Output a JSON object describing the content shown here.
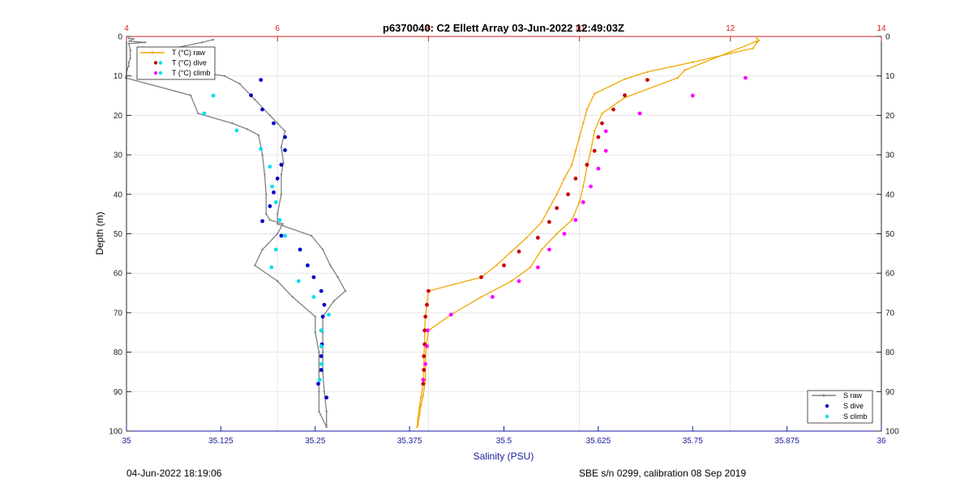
{
  "chart_data": {
    "type": "line",
    "title": "p6370040: C2 Ellett Array 03-Jun-2022 12:49:03Z",
    "xlabel": "Salinity (PSU)",
    "ylabel": "Depth (m)",
    "xlim": [
      35,
      36
    ],
    "x_ticks": [
      "35",
      "35.125",
      "35.25",
      "35.375",
      "35.5",
      "35.625",
      "35.75",
      "35.875",
      "36"
    ],
    "x_top_lim": [
      4,
      14
    ],
    "x_top_ticks": [
      "4",
      "6",
      "8",
      "10",
      "12",
      "14"
    ],
    "ylim": [
      0,
      100
    ],
    "y_ticks": [
      "0",
      "10",
      "20",
      "30",
      "40",
      "50",
      "60",
      "70",
      "80",
      "90",
      "100"
    ],
    "grid": true,
    "colors": {
      "s_raw": "#808080",
      "s_dive": "#0000c8",
      "s_climb": "#00e0f0",
      "t_raw": "#f0a800",
      "t_dive": "#c80000",
      "t_climb": "#ff00ff",
      "bottom_axis": "#1b1b9e",
      "top_axis": "#d42020"
    },
    "legend_temperature": {
      "placement": "top-left",
      "entries": [
        "T (°C) raw",
        "T (°C) dive",
        "T (°C) climb"
      ]
    },
    "legend_salinity": {
      "placement": "bottom-right",
      "entries": [
        "S raw",
        "S dive",
        "S climb"
      ]
    },
    "salinity_raw": [
      {
        "x": 35.003,
        "y": 0.5
      },
      {
        "x": 35.009,
        "y": 0.6
      },
      {
        "x": 35.004,
        "y": 1.2
      },
      {
        "x": 35.025,
        "y": 1.5
      },
      {
        "x": 35.003,
        "y": 1.8
      },
      {
        "x": 35.005,
        "y": 3.5
      },
      {
        "x": 35.005,
        "y": 5.5
      },
      {
        "x": 35.003,
        "y": 6.6
      },
      {
        "x": 35.003,
        "y": 7.5
      },
      {
        "x": 35.001,
        "y": 8.2
      },
      {
        "x": 34.999,
        "y": 10.5
      },
      {
        "x": 35.085,
        "y": 14.9
      },
      {
        "x": 35.095,
        "y": 19.5
      },
      {
        "x": 35.14,
        "y": 22.0
      },
      {
        "x": 35.16,
        "y": 23.5
      },
      {
        "x": 35.175,
        "y": 25.0
      },
      {
        "x": 35.18,
        "y": 30.0
      },
      {
        "x": 35.183,
        "y": 35.0
      },
      {
        "x": 35.185,
        "y": 40.0
      },
      {
        "x": 35.185,
        "y": 45.0
      },
      {
        "x": 35.19,
        "y": 46.5
      },
      {
        "x": 35.207,
        "y": 47.5
      },
      {
        "x": 35.2,
        "y": 50.0
      },
      {
        "x": 35.18,
        "y": 54.0
      },
      {
        "x": 35.17,
        "y": 58.0
      },
      {
        "x": 35.2,
        "y": 62.0
      },
      {
        "x": 35.22,
        "y": 66.0
      },
      {
        "x": 35.25,
        "y": 71.0
      },
      {
        "x": 35.25,
        "y": 75.0
      },
      {
        "x": 35.255,
        "y": 80.0
      },
      {
        "x": 35.255,
        "y": 85.0
      },
      {
        "x": 35.255,
        "y": 90.0
      },
      {
        "x": 35.255,
        "y": 95.0
      },
      {
        "x": 35.265,
        "y": 99.0
      }
    ],
    "salinity_raw_return": [
      {
        "x": 35.265,
        "y": 98.5
      },
      {
        "x": 35.265,
        "y": 95.0
      },
      {
        "x": 35.262,
        "y": 90.0
      },
      {
        "x": 35.26,
        "y": 85.0
      },
      {
        "x": 35.26,
        "y": 80.0
      },
      {
        "x": 35.26,
        "y": 75.0
      },
      {
        "x": 35.26,
        "y": 71.0
      },
      {
        "x": 35.275,
        "y": 67.0
      },
      {
        "x": 35.29,
        "y": 64.5
      },
      {
        "x": 35.28,
        "y": 61.0
      },
      {
        "x": 35.27,
        "y": 58.0
      },
      {
        "x": 35.26,
        "y": 54.0
      },
      {
        "x": 35.245,
        "y": 50.5
      },
      {
        "x": 35.2,
        "y": 47.5
      },
      {
        "x": 35.2,
        "y": 45.0
      },
      {
        "x": 35.205,
        "y": 40.0
      },
      {
        "x": 35.205,
        "y": 35.0
      },
      {
        "x": 35.208,
        "y": 32.0
      },
      {
        "x": 35.205,
        "y": 28.0
      },
      {
        "x": 35.21,
        "y": 24.0
      },
      {
        "x": 35.2,
        "y": 22.0
      },
      {
        "x": 35.19,
        "y": 20.0
      },
      {
        "x": 35.17,
        "y": 16.0
      },
      {
        "x": 35.15,
        "y": 12.0
      },
      {
        "x": 35.13,
        "y": 10.0
      },
      {
        "x": 35.09,
        "y": 8.8
      },
      {
        "x": 35.02,
        "y": 7.8
      },
      {
        "x": 35.03,
        "y": 6.6
      },
      {
        "x": 35.015,
        "y": 5.5
      },
      {
        "x": 35.05,
        "y": 3.5
      },
      {
        "x": 35.1,
        "y": 1.5
      },
      {
        "x": 35.115,
        "y": 0.8
      }
    ],
    "salinity_dive": [
      {
        "x": 35.178,
        "y": 11.0
      },
      {
        "x": 35.165,
        "y": 14.9
      },
      {
        "x": 35.18,
        "y": 18.5
      },
      {
        "x": 35.195,
        "y": 22.0
      },
      {
        "x": 35.21,
        "y": 25.5
      },
      {
        "x": 35.21,
        "y": 28.8
      },
      {
        "x": 35.205,
        "y": 32.5
      },
      {
        "x": 35.2,
        "y": 36.0
      },
      {
        "x": 35.195,
        "y": 39.5
      },
      {
        "x": 35.19,
        "y": 43.0
      },
      {
        "x": 35.18,
        "y": 46.8
      },
      {
        "x": 35.205,
        "y": 50.5
      },
      {
        "x": 35.23,
        "y": 54.0
      },
      {
        "x": 35.24,
        "y": 58.0
      },
      {
        "x": 35.248,
        "y": 61.0
      },
      {
        "x": 35.258,
        "y": 64.5
      },
      {
        "x": 35.262,
        "y": 68.0
      },
      {
        "x": 35.26,
        "y": 71.0
      },
      {
        "x": 35.258,
        "y": 74.5
      },
      {
        "x": 35.259,
        "y": 78.0
      },
      {
        "x": 35.258,
        "y": 81.0
      },
      {
        "x": 35.258,
        "y": 84.5
      },
      {
        "x": 35.254,
        "y": 88.0
      },
      {
        "x": 35.265,
        "y": 91.5
      }
    ],
    "salinity_climb": [
      {
        "x": 35.045,
        "y": 10.5
      },
      {
        "x": 35.115,
        "y": 15.0
      },
      {
        "x": 35.103,
        "y": 19.5
      },
      {
        "x": 35.146,
        "y": 23.8
      },
      {
        "x": 35.178,
        "y": 28.5
      },
      {
        "x": 35.19,
        "y": 33.0
      },
      {
        "x": 35.193,
        "y": 38.0
      },
      {
        "x": 35.198,
        "y": 42.0
      },
      {
        "x": 35.203,
        "y": 46.5
      },
      {
        "x": 35.21,
        "y": 50.5
      },
      {
        "x": 35.198,
        "y": 54.0
      },
      {
        "x": 35.192,
        "y": 58.5
      },
      {
        "x": 35.228,
        "y": 62.0
      },
      {
        "x": 35.248,
        "y": 66.0
      },
      {
        "x": 35.268,
        "y": 70.5
      },
      {
        "x": 35.258,
        "y": 74.5
      },
      {
        "x": 35.258,
        "y": 78.5
      },
      {
        "x": 35.258,
        "y": 83.0
      },
      {
        "x": 35.256,
        "y": 87.0
      }
    ],
    "temperature_raw": [
      {
        "x": 12.35,
        "y": 0.5
      },
      {
        "x": 12.38,
        "y": 1.0
      },
      {
        "x": 12.35,
        "y": 1.5
      },
      {
        "x": 12.3,
        "y": 3.0
      },
      {
        "x": 11.5,
        "y": 6.5
      },
      {
        "x": 10.9,
        "y": 9.0
      },
      {
        "x": 10.6,
        "y": 10.8
      },
      {
        "x": 10.2,
        "y": 14.5
      },
      {
        "x": 10.1,
        "y": 18.5
      },
      {
        "x": 10.05,
        "y": 22.0
      },
      {
        "x": 10.0,
        "y": 25.5
      },
      {
        "x": 9.95,
        "y": 29.0
      },
      {
        "x": 9.9,
        "y": 32.5
      },
      {
        "x": 9.8,
        "y": 36.0
      },
      {
        "x": 9.7,
        "y": 40.0
      },
      {
        "x": 9.6,
        "y": 43.5
      },
      {
        "x": 9.5,
        "y": 47.0
      },
      {
        "x": 9.3,
        "y": 51.0
      },
      {
        "x": 9.1,
        "y": 54.5
      },
      {
        "x": 8.9,
        "y": 58.0
      },
      {
        "x": 8.7,
        "y": 61.0
      },
      {
        "x": 8.0,
        "y": 64.5
      },
      {
        "x": 7.98,
        "y": 68.0
      },
      {
        "x": 7.96,
        "y": 71.0
      },
      {
        "x": 7.95,
        "y": 74.5
      },
      {
        "x": 7.95,
        "y": 78.0
      },
      {
        "x": 7.94,
        "y": 81.0
      },
      {
        "x": 7.94,
        "y": 84.5
      },
      {
        "x": 7.93,
        "y": 88.0
      },
      {
        "x": 7.9,
        "y": 91.5
      },
      {
        "x": 7.88,
        "y": 94.0
      },
      {
        "x": 7.86,
        "y": 97.0
      },
      {
        "x": 7.85,
        "y": 99.0
      }
    ],
    "temperature_raw_return": [
      {
        "x": 7.86,
        "y": 98.5
      },
      {
        "x": 7.88,
        "y": 96.0
      },
      {
        "x": 7.9,
        "y": 93.5
      },
      {
        "x": 7.93,
        "y": 91.0
      },
      {
        "x": 7.96,
        "y": 87.0
      },
      {
        "x": 7.96,
        "y": 83.0
      },
      {
        "x": 7.97,
        "y": 78.5
      },
      {
        "x": 8.0,
        "y": 74.5
      },
      {
        "x": 8.3,
        "y": 70.5
      },
      {
        "x": 8.7,
        "y": 66.0
      },
      {
        "x": 9.1,
        "y": 62.0
      },
      {
        "x": 9.35,
        "y": 58.5
      },
      {
        "x": 9.5,
        "y": 54.0
      },
      {
        "x": 9.7,
        "y": 50.0
      },
      {
        "x": 9.9,
        "y": 46.5
      },
      {
        "x": 10.0,
        "y": 42.0
      },
      {
        "x": 10.05,
        "y": 38.0
      },
      {
        "x": 10.1,
        "y": 33.0
      },
      {
        "x": 10.15,
        "y": 29.0
      },
      {
        "x": 10.2,
        "y": 24.0
      },
      {
        "x": 10.3,
        "y": 19.5
      },
      {
        "x": 10.6,
        "y": 15.5
      },
      {
        "x": 11.3,
        "y": 10.5
      },
      {
        "x": 11.4,
        "y": 8.5
      },
      {
        "x": 12.35,
        "y": 1.2
      }
    ],
    "temperature_dive": [
      {
        "x": 10.9,
        "y": 11.0
      },
      {
        "x": 10.6,
        "y": 14.9
      },
      {
        "x": 10.45,
        "y": 18.5
      },
      {
        "x": 10.3,
        "y": 22.0
      },
      {
        "x": 10.25,
        "y": 25.5
      },
      {
        "x": 10.2,
        "y": 29.0
      },
      {
        "x": 10.1,
        "y": 32.5
      },
      {
        "x": 9.95,
        "y": 36.0
      },
      {
        "x": 9.85,
        "y": 40.0
      },
      {
        "x": 9.7,
        "y": 43.5
      },
      {
        "x": 9.6,
        "y": 47.0
      },
      {
        "x": 9.45,
        "y": 51.0
      },
      {
        "x": 9.2,
        "y": 54.5
      },
      {
        "x": 9.0,
        "y": 58.0
      },
      {
        "x": 8.7,
        "y": 61.0
      },
      {
        "x": 8.0,
        "y": 64.5
      },
      {
        "x": 7.98,
        "y": 68.0
      },
      {
        "x": 7.96,
        "y": 71.0
      },
      {
        "x": 7.95,
        "y": 74.5
      },
      {
        "x": 7.95,
        "y": 78.0
      },
      {
        "x": 7.94,
        "y": 81.0
      },
      {
        "x": 7.94,
        "y": 84.5
      },
      {
        "x": 7.93,
        "y": 88.0
      }
    ],
    "temperature_climb": [
      {
        "x": 12.2,
        "y": 10.5
      },
      {
        "x": 11.5,
        "y": 15.0
      },
      {
        "x": 10.8,
        "y": 19.5
      },
      {
        "x": 10.35,
        "y": 24.0
      },
      {
        "x": 10.35,
        "y": 29.0
      },
      {
        "x": 10.25,
        "y": 33.5
      },
      {
        "x": 10.15,
        "y": 38.0
      },
      {
        "x": 10.05,
        "y": 42.0
      },
      {
        "x": 9.95,
        "y": 46.5
      },
      {
        "x": 9.8,
        "y": 50.0
      },
      {
        "x": 9.6,
        "y": 54.0
      },
      {
        "x": 9.45,
        "y": 58.5
      },
      {
        "x": 9.2,
        "y": 62.0
      },
      {
        "x": 8.85,
        "y": 66.0
      },
      {
        "x": 8.3,
        "y": 70.5
      },
      {
        "x": 7.99,
        "y": 74.5
      },
      {
        "x": 7.98,
        "y": 78.5
      },
      {
        "x": 7.96,
        "y": 83.0
      },
      {
        "x": 7.93,
        "y": 87.0
      }
    ]
  },
  "footer": {
    "left": "04-Jun-2022 18:19:06",
    "right": "SBE s/n 0299, calibration 08 Sep 2019"
  }
}
